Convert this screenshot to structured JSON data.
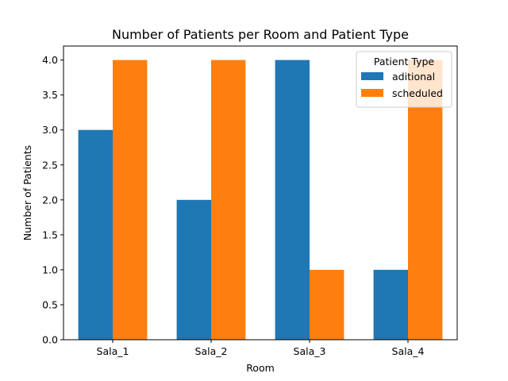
{
  "chart_data": {
    "type": "bar",
    "title": "Number of Patients per Room and Patient Type",
    "xlabel": "Room",
    "ylabel": "Number of Patients",
    "categories": [
      "Sala_1",
      "Sala_2",
      "Sala_3",
      "Sala_4"
    ],
    "series": [
      {
        "name": "aditional",
        "values": [
          3,
          2,
          4,
          1
        ],
        "color": "#1f77b4"
      },
      {
        "name": "scheduled",
        "values": [
          4,
          4,
          1,
          4
        ],
        "color": "#ff7f0e"
      }
    ],
    "ylim": [
      0,
      4.2
    ],
    "yticks": [
      "0.0",
      "0.5",
      "1.0",
      "1.5",
      "2.0",
      "2.5",
      "3.0",
      "3.5",
      "4.0"
    ],
    "legend": {
      "title": "Patient Type",
      "placement": "top-right"
    },
    "grid": false
  }
}
